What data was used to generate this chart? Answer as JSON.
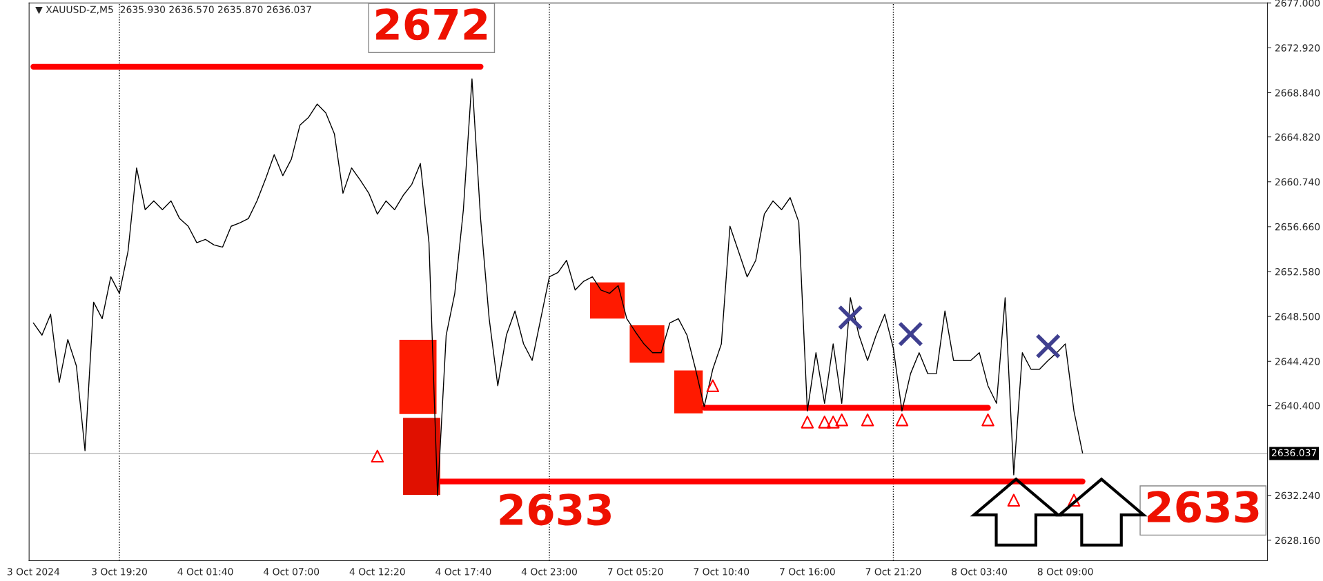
{
  "chart_data": {
    "type": "line",
    "title": "▼ XAUUSD-Z,M5  2635.930 2636.570 2635.870 2636.037",
    "categories": [
      "3 Oct 2024",
      null,
      null,
      null,
      null,
      null,
      null,
      null,
      null,
      null,
      "3 Oct 19:20",
      null,
      null,
      null,
      null,
      null,
      null,
      null,
      null,
      null,
      "4 Oct 01:40",
      null,
      null,
      null,
      null,
      null,
      null,
      null,
      null,
      null,
      "4 Oct 07:00",
      null,
      null,
      null,
      null,
      null,
      null,
      null,
      null,
      null,
      "4 Oct 12:20",
      null,
      null,
      null,
      null,
      null,
      null,
      null,
      null,
      null,
      "4 Oct 17:40",
      null,
      null,
      null,
      null,
      null,
      null,
      null,
      null,
      null,
      "4 Oct 23:00",
      null,
      null,
      null,
      null,
      null,
      null,
      null,
      null,
      null,
      "7 Oct 05:20",
      null,
      null,
      null,
      null,
      null,
      null,
      null,
      null,
      null,
      "7 Oct 10:40",
      null,
      null,
      null,
      null,
      null,
      null,
      null,
      null,
      null,
      "7 Oct 16:00",
      null,
      null,
      null,
      null,
      null,
      null,
      null,
      null,
      null,
      "7 Oct 21:20",
      null,
      null,
      null,
      null,
      null,
      null,
      null,
      null,
      null,
      "8 Oct 03:40",
      null,
      null,
      null,
      null,
      null,
      null,
      null,
      null,
      null,
      "8 Oct 09:00",
      null,
      null,
      null,
      null,
      null,
      null,
      null,
      null,
      null,
      null,
      null,
      null,
      null,
      null,
      null,
      null,
      null,
      null,
      null,
      null,
      null,
      null,
      null
    ],
    "ylim": [
      2626.3,
      2677.0
    ],
    "yticks": [
      {
        "value": 2628.16,
        "label": "2628.160"
      },
      {
        "value": 2632.24,
        "label": "2632.240"
      },
      {
        "value": 2640.4,
        "label": "2640.400"
      },
      {
        "value": 2644.42,
        "label": "2644.420"
      },
      {
        "value": 2648.5,
        "label": "2648.500"
      },
      {
        "value": 2652.58,
        "label": "2652.580"
      },
      {
        "value": 2656.66,
        "label": "2656.660"
      },
      {
        "value": 2660.74,
        "label": "2660.740"
      },
      {
        "value": 2664.82,
        "label": "2664.820"
      },
      {
        "value": 2668.84,
        "label": "2668.840"
      },
      {
        "value": 2672.92,
        "label": "2672.920"
      },
      {
        "value": 2677.0,
        "label": "2677.000"
      }
    ],
    "grid": false,
    "ref_lines": [
      {
        "axis": "x",
        "value": "3 Oct 19:20",
        "color": "#000000",
        "line_style": "dotted"
      },
      {
        "axis": "x",
        "value": "4 Oct 23:00",
        "color": "#000000",
        "line_style": "dotted"
      },
      {
        "axis": "x",
        "value": "7 Oct 21:20",
        "color": "#000000",
        "line_style": "dotted"
      },
      {
        "axis": "y",
        "value": 2636.037,
        "label": "2636.037",
        "color": "#b0b0b0",
        "line_style": "solid"
      }
    ],
    "annotations": [
      "2672",
      "2633",
      "2633"
    ],
    "series": [
      {
        "color": "#000000",
        "values": [
          2647.9,
          2646.8,
          2648.7,
          2642.5,
          2646.4,
          2644.0,
          2636.3,
          2649.8,
          2648.3,
          2652.1,
          2650.6,
          2654.4,
          2662.0,
          2658.2,
          2659.0,
          2658.2,
          2659.0,
          2657.4,
          2656.7,
          2655.2,
          2655.5,
          2655.0,
          2654.8,
          2656.7,
          2657.0,
          2657.4,
          2659.0,
          2661.0,
          2663.2,
          2661.3,
          2662.8,
          2665.9,
          2666.6,
          2667.8,
          2667.0,
          2665.1,
          2659.7,
          2662.0,
          2660.9,
          2659.7,
          2657.8,
          2659.0,
          2658.2,
          2659.5,
          2660.5,
          2662.4,
          2655.2,
          2632.2,
          2646.8,
          2650.6,
          2658.2,
          2670.1,
          2657.4,
          2648.3,
          2642.2,
          2646.8,
          2649.0,
          2646.0,
          2644.5,
          2648.3,
          2652.1,
          2652.5,
          2653.6,
          2650.9,
          2651.7,
          2652.1,
          2650.9,
          2650.6,
          2651.3,
          2648.3,
          2647.1,
          2646.0,
          2645.2,
          2645.2,
          2647.9,
          2648.3,
          2646.8,
          2643.7,
          2640.3,
          2643.7,
          2646.0,
          2656.7,
          2654.4,
          2652.1,
          2653.6,
          2657.8,
          2659.0,
          2658.2,
          2659.3,
          2657.1,
          2639.9,
          2645.2,
          2640.6,
          2646.0,
          2640.6,
          2650.2,
          2646.8,
          2644.5,
          2646.8,
          2648.7,
          2645.6,
          2639.9,
          2643.3,
          2645.2,
          2643.3,
          2643.3,
          2649.0,
          2644.5,
          2644.5,
          2644.5,
          2645.2,
          2642.2,
          2640.6,
          2650.2,
          2634.1,
          2645.2,
          2643.7,
          2643.7,
          2644.5,
          2645.2,
          2646.0,
          2639.9,
          2636.1,
          null,
          null,
          null,
          null,
          null,
          null,
          null,
          null,
          null,
          null,
          null,
          null,
          null,
          null,
          null,
          null,
          null,
          null,
          null,
          null,
          null
        ]
      },
      {
        "type": "line",
        "color": "#ff0000",
        "values": [
          2671.2,
          2671.2,
          2671.2,
          2671.2,
          2671.2,
          2671.2,
          2671.2,
          2671.2,
          2671.2,
          2671.2,
          2671.2,
          2671.2,
          2671.2,
          2671.2,
          2671.2,
          2671.2,
          2671.2,
          2671.2,
          2671.2,
          2671.2,
          2671.2,
          2671.2,
          2671.2,
          2671.2,
          2671.2,
          2671.2,
          2671.2,
          2671.2,
          2671.2,
          2671.2,
          2671.2,
          2671.2,
          2671.2,
          2671.2,
          2671.2,
          2671.2,
          2671.2,
          2671.2,
          2671.2,
          2671.2,
          2671.2,
          2671.2,
          2671.2,
          2671.2,
          2671.2,
          2671.2,
          2671.2,
          2671.2,
          2671.2,
          2671.2,
          2671.2,
          2671.2,
          2671.2,
          null,
          null,
          null,
          null,
          null,
          null,
          null,
          null,
          null,
          null,
          null,
          null,
          null,
          null,
          null,
          null,
          null,
          null,
          null,
          null,
          null,
          null,
          null,
          null,
          null,
          null,
          null,
          null,
          null,
          null,
          null,
          null,
          null,
          null,
          null,
          null,
          null,
          null,
          null,
          null,
          null,
          null,
          null,
          null,
          null,
          null,
          null,
          null,
          null,
          null,
          null,
          null,
          null,
          null,
          null,
          null,
          null,
          null,
          null,
          null,
          null,
          null,
          null,
          null,
          null,
          null,
          null,
          null,
          null,
          null,
          null,
          null,
          null,
          null,
          null,
          null,
          null,
          null,
          null,
          null,
          null,
          null,
          null,
          null,
          null,
          null,
          null,
          null,
          null,
          null,
          null
        ]
      },
      {
        "type": "line",
        "color": "#ff0000",
        "values": [
          null,
          null,
          null,
          null,
          null,
          null,
          null,
          null,
          null,
          null,
          null,
          null,
          null,
          null,
          null,
          null,
          null,
          null,
          null,
          null,
          null,
          null,
          null,
          null,
          null,
          null,
          null,
          null,
          null,
          null,
          null,
          null,
          null,
          null,
          null,
          null,
          null,
          null,
          null,
          null,
          null,
          null,
          null,
          null,
          null,
          null,
          null,
          null,
          null,
          null,
          null,
          null,
          null,
          null,
          null,
          null,
          null,
          null,
          null,
          null,
          null,
          null,
          null,
          null,
          null,
          null,
          null,
          null,
          null,
          null,
          null,
          null,
          null,
          null,
          null,
          null,
          null,
          null,
          2640.2,
          2640.2,
          2640.2,
          2640.2,
          2640.2,
          2640.2,
          2640.2,
          2640.2,
          2640.2,
          2640.2,
          2640.2,
          2640.2,
          2640.2,
          2640.2,
          2640.2,
          2640.2,
          2640.2,
          2640.2,
          2640.2,
          2640.2,
          2640.2,
          2640.2,
          2640.2,
          2640.2,
          2640.2,
          2640.2,
          2640.2,
          2640.2,
          2640.2,
          2640.2,
          2640.2,
          2640.2,
          2640.2,
          2640.2,
          null,
          null,
          null,
          null,
          null,
          null,
          null,
          null,
          null,
          null,
          null,
          null,
          null,
          null,
          null,
          null,
          null,
          null,
          null,
          null,
          null,
          null,
          null,
          null,
          null,
          null,
          null,
          null,
          null,
          null,
          null,
          null
        ]
      },
      {
        "type": "line",
        "color": "#ff0000",
        "values": [
          null,
          null,
          null,
          null,
          null,
          null,
          null,
          null,
          null,
          null,
          null,
          null,
          null,
          null,
          null,
          null,
          null,
          null,
          null,
          null,
          null,
          null,
          null,
          null,
          null,
          null,
          null,
          null,
          null,
          null,
          null,
          null,
          null,
          null,
          null,
          null,
          null,
          null,
          null,
          null,
          null,
          null,
          null,
          null,
          null,
          null,
          null,
          2633.5,
          2633.5,
          2633.5,
          2633.5,
          2633.5,
          2633.5,
          2633.5,
          2633.5,
          2633.5,
          2633.5,
          2633.5,
          2633.5,
          2633.5,
          2633.5,
          2633.5,
          2633.5,
          2633.5,
          2633.5,
          2633.5,
          2633.5,
          2633.5,
          2633.5,
          2633.5,
          2633.5,
          2633.5,
          2633.5,
          2633.5,
          2633.5,
          2633.5,
          2633.5,
          2633.5,
          2633.5,
          2633.5,
          2633.5,
          2633.5,
          2633.5,
          2633.5,
          2633.5,
          2633.5,
          2633.5,
          2633.5,
          2633.5,
          2633.5,
          2633.5,
          2633.5,
          2633.5,
          2633.5,
          2633.5,
          2633.5,
          2633.5,
          2633.5,
          2633.5,
          2633.5,
          2633.5,
          2633.5,
          2633.5,
          2633.5,
          2633.5,
          2633.5,
          2633.5,
          2633.5,
          2633.5,
          2633.5,
          2633.5,
          2633.5,
          2633.5,
          2633.5,
          2633.5,
          2633.5,
          2633.5,
          2633.5,
          2633.5,
          2633.5,
          2633.5,
          2633.5,
          2633.5,
          null,
          null,
          null,
          null,
          null,
          null,
          null,
          null,
          null,
          null,
          null,
          null,
          null,
          null,
          null,
          null,
          null,
          null,
          null,
          null,
          null
        ]
      },
      {
        "type": "scatter",
        "color": "#3f3f8f",
        "marker": "cross",
        "values": [
          null,
          null,
          null,
          null,
          null,
          null,
          null,
          null,
          null,
          null,
          null,
          null,
          null,
          null,
          null,
          null,
          null,
          null,
          null,
          null,
          null,
          null,
          null,
          null,
          null,
          null,
          null,
          null,
          null,
          null,
          null,
          null,
          null,
          null,
          null,
          null,
          null,
          null,
          null,
          null,
          null,
          null,
          null,
          null,
          null,
          null,
          null,
          null,
          null,
          null,
          null,
          null,
          null,
          null,
          null,
          null,
          null,
          null,
          null,
          null,
          null,
          null,
          null,
          null,
          null,
          null,
          null,
          null,
          null,
          null,
          null,
          null,
          null,
          null,
          null,
          null,
          null,
          null,
          null,
          null,
          null,
          null,
          null,
          null,
          null,
          null,
          null,
          null,
          null,
          null,
          null,
          null,
          null,
          null,
          null,
          2648.4,
          null,
          null,
          null,
          null,
          null,
          null,
          2646.9,
          null,
          null,
          null,
          null,
          null,
          null,
          null,
          null,
          null,
          null,
          null,
          null,
          null,
          null,
          null,
          2645.8,
          null,
          null,
          null,
          null,
          null,
          null,
          null,
          null,
          null,
          null,
          null,
          null,
          null,
          null,
          null,
          null,
          null,
          null,
          null,
          null,
          null,
          null,
          null,
          null,
          null
        ]
      },
      {
        "type": "scatter",
        "color": "#ff0000",
        "marker": "triangle",
        "values": [
          null,
          null,
          null,
          null,
          null,
          null,
          null,
          null,
          null,
          null,
          null,
          null,
          null,
          null,
          null,
          null,
          null,
          null,
          null,
          null,
          null,
          null,
          null,
          null,
          null,
          null,
          null,
          null,
          null,
          null,
          null,
          null,
          null,
          null,
          null,
          null,
          null,
          null,
          null,
          null,
          2635.8,
          null,
          null,
          null,
          null,
          null,
          null,
          null,
          null,
          null,
          null,
          null,
          null,
          null,
          null,
          null,
          null,
          null,
          null,
          null,
          null,
          null,
          null,
          null,
          null,
          null,
          null,
          null,
          null,
          null,
          null,
          null,
          null,
          null,
          null,
          null,
          null,
          null,
          null,
          2642.2,
          null,
          null,
          null,
          null,
          null,
          null,
          null,
          null,
          null,
          null,
          2638.9,
          null,
          2638.9,
          2638.9,
          2639.1,
          null,
          null,
          2639.1,
          null,
          null,
          null,
          2639.1,
          null,
          null,
          null,
          null,
          null,
          null,
          null,
          null,
          null,
          2639.1,
          null,
          null,
          2631.8,
          null,
          null,
          null,
          null,
          null,
          null,
          2631.8,
          null,
          null,
          null,
          null,
          null,
          null,
          null,
          null,
          null,
          null,
          null,
          null,
          null,
          null,
          null,
          null,
          null,
          null,
          null,
          null,
          null,
          null
        ]
      }
    ]
  }
}
